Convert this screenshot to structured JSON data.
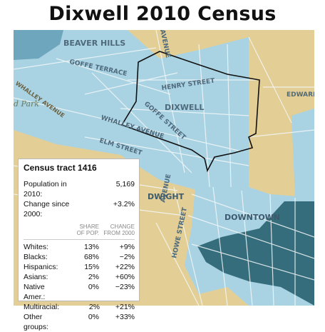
{
  "title": "Dixwell 2010 Census",
  "map": {
    "labels": {
      "beaver_hills": "BEAVER HILLS",
      "goffe_terrace": "GOFFE TERRACE",
      "whalley_avenue_nw": "WHALLEY AVENUE",
      "henry_street": "HENRY STREET",
      "dixwell": "DIXWELL",
      "goffe_street": "GOFFE STREET",
      "whalley_avenue": "WHALLEY AVENUE",
      "elm_street": "ELM STREET",
      "dwight": "DWIGHT",
      "downtown": "DOWNTOWN",
      "howe_street": "HOWE STREET",
      "edward": "EDWARD",
      "park": "d Park",
      "avenue_top": "AVENUE",
      "avenue_mid": "AVENUE"
    },
    "colors": {
      "land": "#e3cf95",
      "light_tract": "#a9d3e3",
      "mid_tract": "#6ea7bd",
      "dark_tract": "#356d7c",
      "street": "#f3f7f8",
      "outline": "#111111"
    }
  },
  "panel": {
    "title": "Census tract 1416",
    "population_label": "Population in 2010:",
    "population_value": "5,169",
    "change_label": "Change since 2000:",
    "change_value": "+3.2%",
    "col_share": [
      "SHARE",
      "OF POP."
    ],
    "col_change": [
      "CHANGE",
      "FROM 2000"
    ],
    "rows": [
      {
        "label": "Whites:",
        "share": "13%",
        "change": "+9%"
      },
      {
        "label": "Blacks:",
        "share": "68%",
        "change": "−2%"
      },
      {
        "label": "Hispanics:",
        "share": "15%",
        "change": "+22%"
      },
      {
        "label": "Asians:",
        "share": "2%",
        "change": "+60%"
      },
      {
        "label": "Native Amer.:",
        "share": "0%",
        "change": "−23%"
      },
      {
        "label": "Multiracial:",
        "share": "2%",
        "change": "+21%"
      },
      {
        "label": "Other groups:",
        "share": "0%",
        "change": "+33%"
      }
    ]
  }
}
